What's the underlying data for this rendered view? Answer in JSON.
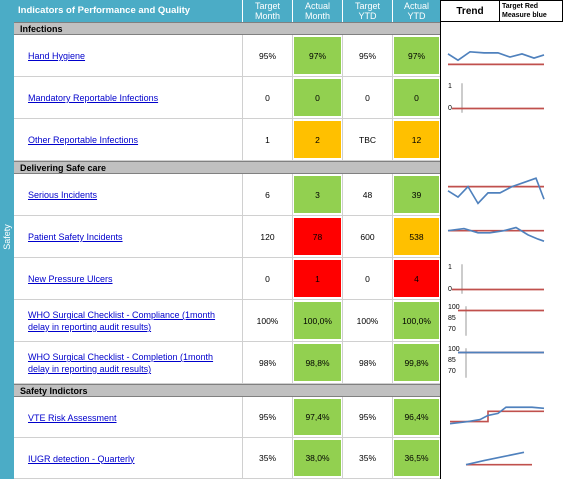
{
  "header": {
    "title": "Indicators of Performance and Quality",
    "target_month": "Target\nMonth",
    "actual_month": "Actual\nMonth",
    "target_ytd": "Target\nYTD",
    "actual_ytd": "Actual\nYTD",
    "trend": "Trend",
    "target_note": "Target Red Measure blue"
  },
  "sidebar": {
    "label": "Safety"
  },
  "colors": {
    "header_bg": "#4bacc6",
    "green": "#92d050",
    "amber": "#ffc000",
    "red": "#ff0000",
    "measure": "#4f81bd",
    "target": "#c0504d"
  },
  "sections": {
    "infections": "Infections",
    "safe_care": "Delivering Safe care",
    "safety_indicators": "Safety Indictors"
  },
  "rows": [
    {
      "name": "Hand Hygiene",
      "target_month": "95%",
      "actual_month": "97%",
      "target_ytd": "95%",
      "actual_ytd": "97%",
      "am_color": "green",
      "ay_color": "green"
    },
    {
      "name": "Mandatory Reportable Infections",
      "target_month": "0",
      "actual_month": "0",
      "target_ytd": "0",
      "actual_ytd": "0",
      "am_color": "green",
      "ay_color": "green",
      "axis": [
        "1",
        "0"
      ]
    },
    {
      "name": "Other Reportable Infections",
      "target_month": "1",
      "actual_month": "2",
      "target_ytd": "TBC",
      "actual_ytd": "12",
      "am_color": "amber",
      "ay_color": "amber"
    },
    {
      "name": "Serious Incidents",
      "target_month": "6",
      "actual_month": "3",
      "target_ytd": "48",
      "actual_ytd": "39",
      "am_color": "green",
      "ay_color": "green"
    },
    {
      "name": "Patient Safety Incidents",
      "target_month": "120",
      "actual_month": "78",
      "target_ytd": "600",
      "actual_ytd": "538",
      "am_color": "red",
      "ay_color": "amber"
    },
    {
      "name": "New Pressure Ulcers",
      "target_month": "0",
      "actual_month": "1",
      "target_ytd": "0",
      "actual_ytd": "4",
      "am_color": "red",
      "ay_color": "red",
      "axis": [
        "1",
        "0"
      ]
    },
    {
      "name_line1": "WHO Surgical Checklist - Compliance (1month",
      "name_line2": "delay in reporting audit results)",
      "target_month": "100%",
      "actual_month": "100,0%",
      "target_ytd": "100%",
      "actual_ytd": "100,0%",
      "am_color": "green",
      "ay_color": "green",
      "axis": [
        "100",
        "85",
        "70"
      ]
    },
    {
      "name_line1": "WHO Surgical Checklist - Completion (1month",
      "name_line2": "delay in reporting audit results)",
      "target_month": "98%",
      "actual_month": "98,8%",
      "target_ytd": "98%",
      "actual_ytd": "99,8%",
      "am_color": "green",
      "ay_color": "green",
      "axis": [
        "100",
        "85",
        "70"
      ]
    },
    {
      "name": "VTE Risk Assessment",
      "target_month": "95%",
      "actual_month": "97,4%",
      "target_ytd": "95%",
      "actual_ytd": "96,4%",
      "am_color": "green",
      "ay_color": "green"
    },
    {
      "name": "IUGR detection - Quarterly",
      "target_month": "35%",
      "actual_month": "38,0%",
      "target_ytd": "35%",
      "actual_ytd": "36,5%",
      "am_color": "green",
      "ay_color": "green"
    }
  ]
}
